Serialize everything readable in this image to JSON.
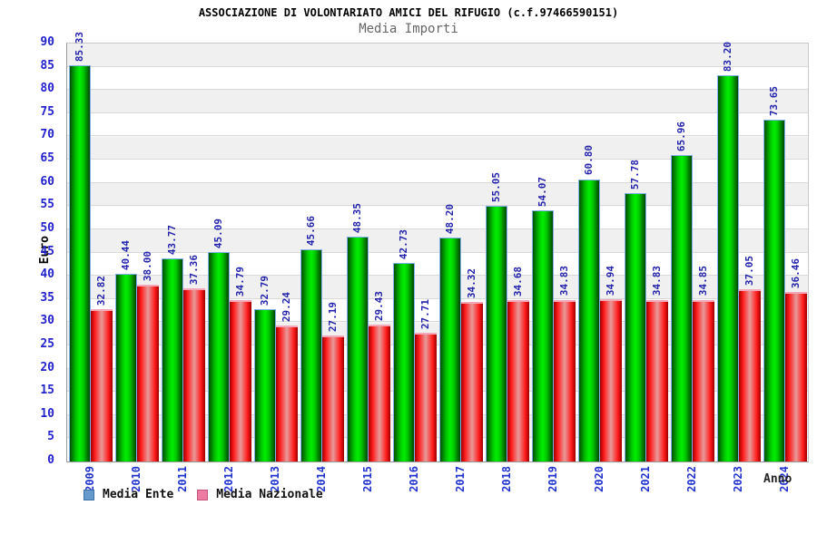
{
  "chart_data": {
    "type": "bar",
    "title": "ASSOCIAZIONE DI VOLONTARIATO AMICI DEL RIFUGIO (c.f.97466590151)",
    "subtitle": "Media Importi",
    "xlabel": "Anno",
    "ylabel": "Euro",
    "ylim": [
      0,
      90
    ],
    "ytick_step": 5,
    "grid": "horizontal-bands-on",
    "legend_position": "bottom-left",
    "value_label_format": "2-decimals",
    "categories": [
      "2009",
      "2010",
      "2011",
      "2012",
      "2013",
      "2014",
      "2015",
      "2016",
      "2017",
      "2018",
      "2019",
      "2020",
      "2021",
      "2022",
      "2023",
      "2024"
    ],
    "series": [
      {
        "name": "Media Ente",
        "values": [
          85.33,
          40.44,
          43.77,
          45.09,
          32.79,
          45.66,
          48.35,
          42.73,
          48.2,
          55.05,
          54.07,
          60.8,
          57.78,
          65.96,
          83.2,
          73.65
        ],
        "bar_class": "bar-ente",
        "swatch_color": "#6699cc"
      },
      {
        "name": "Media Nazionale",
        "values": [
          32.82,
          38.0,
          37.36,
          34.79,
          29.24,
          27.19,
          29.43,
          27.71,
          34.32,
          34.68,
          34.83,
          34.94,
          34.83,
          34.85,
          37.05,
          36.46
        ],
        "bar_class": "bar-naz",
        "swatch_color": "#ee7ba2"
      }
    ]
  },
  "colors": {
    "tick_label_blue": "#2222cc",
    "value_label_navy": "#2323ab",
    "band_gray": "#f0f0f0",
    "band_white": "#ffffff",
    "gridline": "#d9d9d9",
    "green_bright": "#00ee00",
    "green_dark": "#005000",
    "green_border_blue": "#7fb0e8",
    "red_bright": "#ff1a1a",
    "red_center_pink": "#e89a9a",
    "red_border_pink": "#f2a8b8",
    "subtitle_gray": "#666666"
  }
}
